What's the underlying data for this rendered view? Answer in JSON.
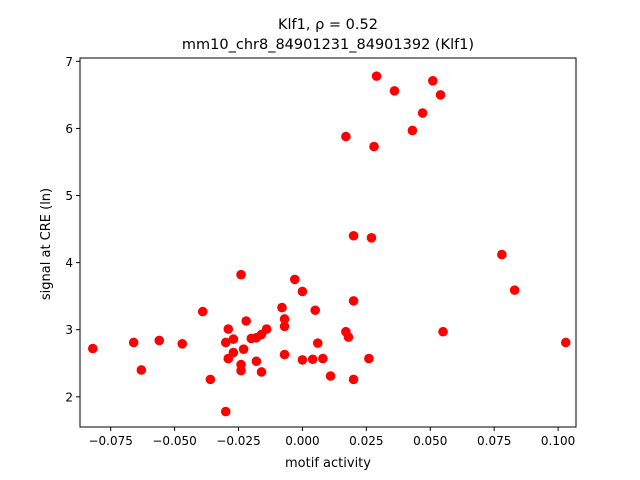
{
  "chart_data": {
    "type": "scatter",
    "title_line1": "Klf1, ρ = 0.52",
    "title_line2": "mm10_chr8_84901231_84901392 (Klf1)",
    "xlabel": "motif activity",
    "ylabel": "signal at CRE (ln)",
    "xlim": [
      -0.087,
      0.107
    ],
    "ylim": [
      1.55,
      7.05
    ],
    "xticks": [
      -0.075,
      -0.05,
      -0.025,
      0.0,
      0.025,
      0.05,
      0.075,
      0.1
    ],
    "xtick_labels": [
      "−0.075",
      "−0.050",
      "−0.025",
      "0.000",
      "0.025",
      "0.050",
      "0.075",
      "0.100"
    ],
    "yticks": [
      2,
      3,
      4,
      5,
      6,
      7
    ],
    "ytick_labels": [
      "2",
      "3",
      "4",
      "5",
      "6",
      "7"
    ],
    "marker_color": "#ff0000",
    "points": [
      {
        "x": -0.082,
        "y": 2.72
      },
      {
        "x": -0.066,
        "y": 2.81
      },
      {
        "x": -0.063,
        "y": 2.4
      },
      {
        "x": -0.056,
        "y": 2.84
      },
      {
        "x": -0.047,
        "y": 2.79
      },
      {
        "x": -0.039,
        "y": 3.27
      },
      {
        "x": -0.036,
        "y": 2.26
      },
      {
        "x": -0.03,
        "y": 1.78
      },
      {
        "x": -0.03,
        "y": 2.81
      },
      {
        "x": -0.029,
        "y": 3.01
      },
      {
        "x": -0.029,
        "y": 2.57
      },
      {
        "x": -0.027,
        "y": 2.66
      },
      {
        "x": -0.027,
        "y": 2.86
      },
      {
        "x": -0.024,
        "y": 2.39
      },
      {
        "x": -0.024,
        "y": 2.48
      },
      {
        "x": -0.024,
        "y": 3.82
      },
      {
        "x": -0.023,
        "y": 2.71
      },
      {
        "x": -0.022,
        "y": 3.13
      },
      {
        "x": -0.02,
        "y": 2.87
      },
      {
        "x": -0.018,
        "y": 2.53
      },
      {
        "x": -0.018,
        "y": 2.88
      },
      {
        "x": -0.016,
        "y": 2.37
      },
      {
        "x": -0.016,
        "y": 2.93
      },
      {
        "x": -0.014,
        "y": 3.01
      },
      {
        "x": -0.008,
        "y": 3.33
      },
      {
        "x": -0.007,
        "y": 3.05
      },
      {
        "x": -0.007,
        "y": 3.16
      },
      {
        "x": -0.007,
        "y": 2.63
      },
      {
        "x": -0.003,
        "y": 3.75
      },
      {
        "x": 0.0,
        "y": 2.55
      },
      {
        "x": 0.0,
        "y": 3.57
      },
      {
        "x": 0.004,
        "y": 2.56
      },
      {
        "x": 0.005,
        "y": 3.29
      },
      {
        "x": 0.006,
        "y": 2.8
      },
      {
        "x": 0.008,
        "y": 2.57
      },
      {
        "x": 0.011,
        "y": 2.31
      },
      {
        "x": 0.017,
        "y": 2.97
      },
      {
        "x": 0.017,
        "y": 5.88
      },
      {
        "x": 0.018,
        "y": 2.89
      },
      {
        "x": 0.02,
        "y": 2.26
      },
      {
        "x": 0.02,
        "y": 3.43
      },
      {
        "x": 0.02,
        "y": 4.4
      },
      {
        "x": 0.026,
        "y": 2.57
      },
      {
        "x": 0.027,
        "y": 4.37
      },
      {
        "x": 0.028,
        "y": 5.73
      },
      {
        "x": 0.029,
        "y": 6.78
      },
      {
        "x": 0.036,
        "y": 6.56
      },
      {
        "x": 0.043,
        "y": 5.97
      },
      {
        "x": 0.047,
        "y": 6.23
      },
      {
        "x": 0.051,
        "y": 6.71
      },
      {
        "x": 0.054,
        "y": 6.5
      },
      {
        "x": 0.055,
        "y": 2.97
      },
      {
        "x": 0.078,
        "y": 4.12
      },
      {
        "x": 0.083,
        "y": 3.59
      },
      {
        "x": 0.103,
        "y": 2.81
      }
    ]
  }
}
